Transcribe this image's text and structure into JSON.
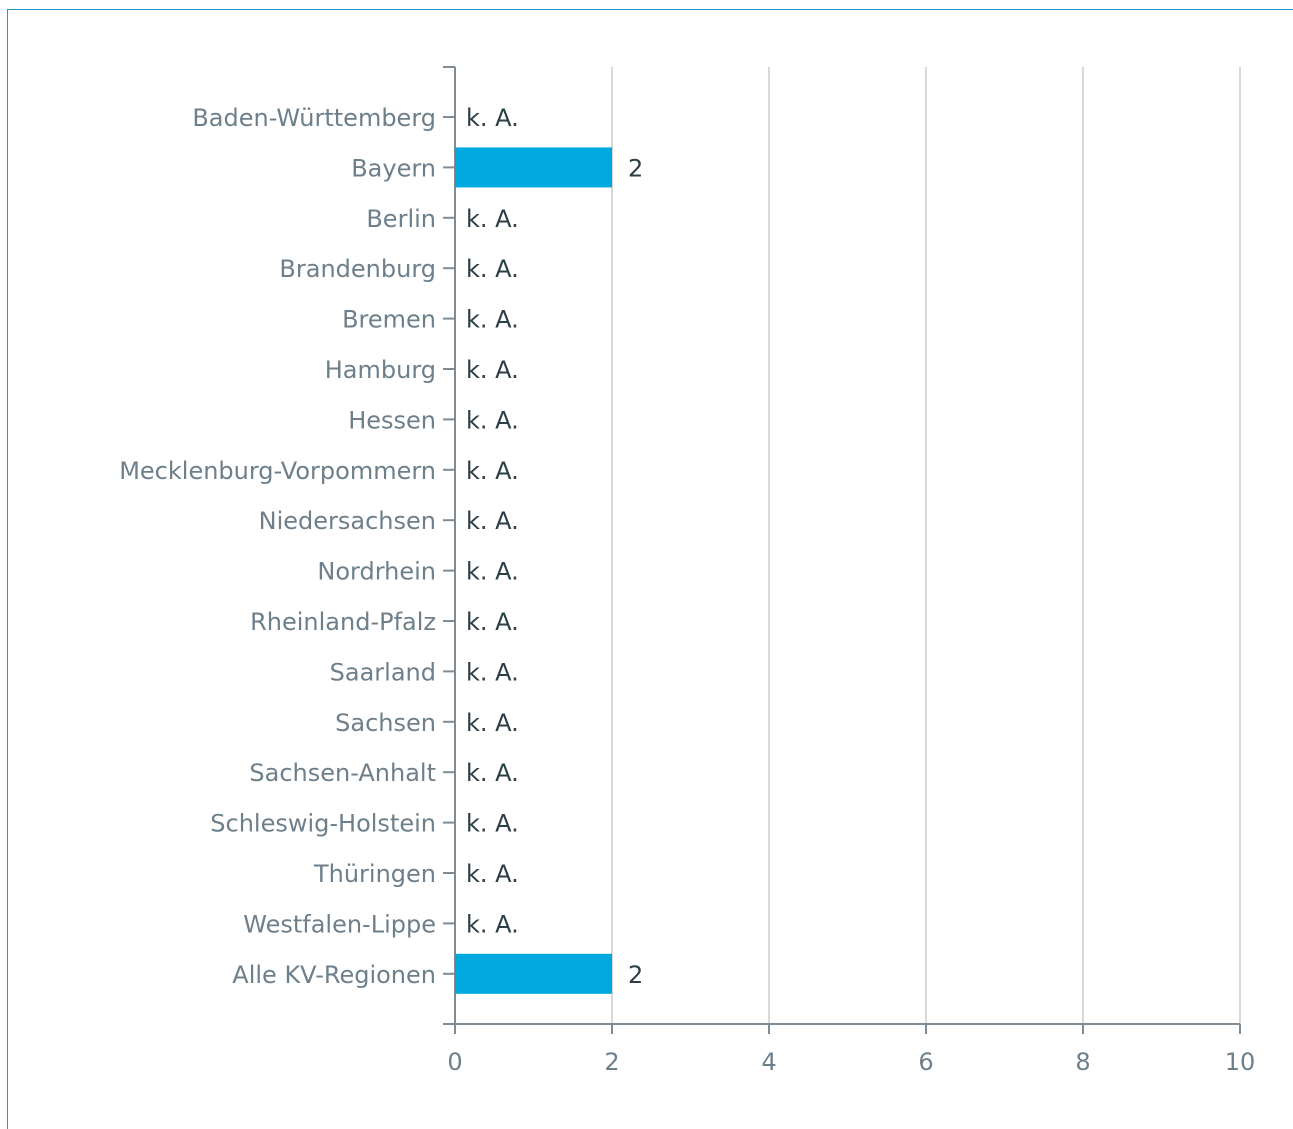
{
  "chart_data": {
    "type": "bar",
    "orientation": "horizontal",
    "categories": [
      "Baden-Württemberg",
      "Bayern",
      "Berlin",
      "Brandenburg",
      "Bremen",
      "Hamburg",
      "Hessen",
      "Mecklenburg-Vorpommern",
      "Niedersachsen",
      "Nordrhein",
      "Rheinland-Pfalz",
      "Saarland",
      "Sachsen",
      "Sachsen-Anhalt",
      "Schleswig-Holstein",
      "Thüringen",
      "Westfalen-Lippe",
      "Alle KV-Regionen"
    ],
    "values": [
      null,
      2,
      null,
      null,
      null,
      null,
      null,
      null,
      null,
      null,
      null,
      null,
      null,
      null,
      null,
      null,
      null,
      2
    ],
    "value_labels": [
      "k. A.",
      "2",
      "k. A.",
      "k. A.",
      "k. A.",
      "k. A.",
      "k. A.",
      "k. A.",
      "k. A.",
      "k. A.",
      "k. A.",
      "k. A.",
      "k. A.",
      "k. A.",
      "k. A.",
      "k. A.",
      "k. A.",
      "2"
    ],
    "xlim": [
      0,
      10
    ],
    "xticks": [
      "0",
      "2",
      "4",
      "6",
      "8",
      "10"
    ],
    "grid": true,
    "bar_color": "#00a8e0",
    "grid_color": "#d9d9d9",
    "axis_color": "#7f8c96",
    "title": "",
    "xlabel": "",
    "ylabel": ""
  }
}
